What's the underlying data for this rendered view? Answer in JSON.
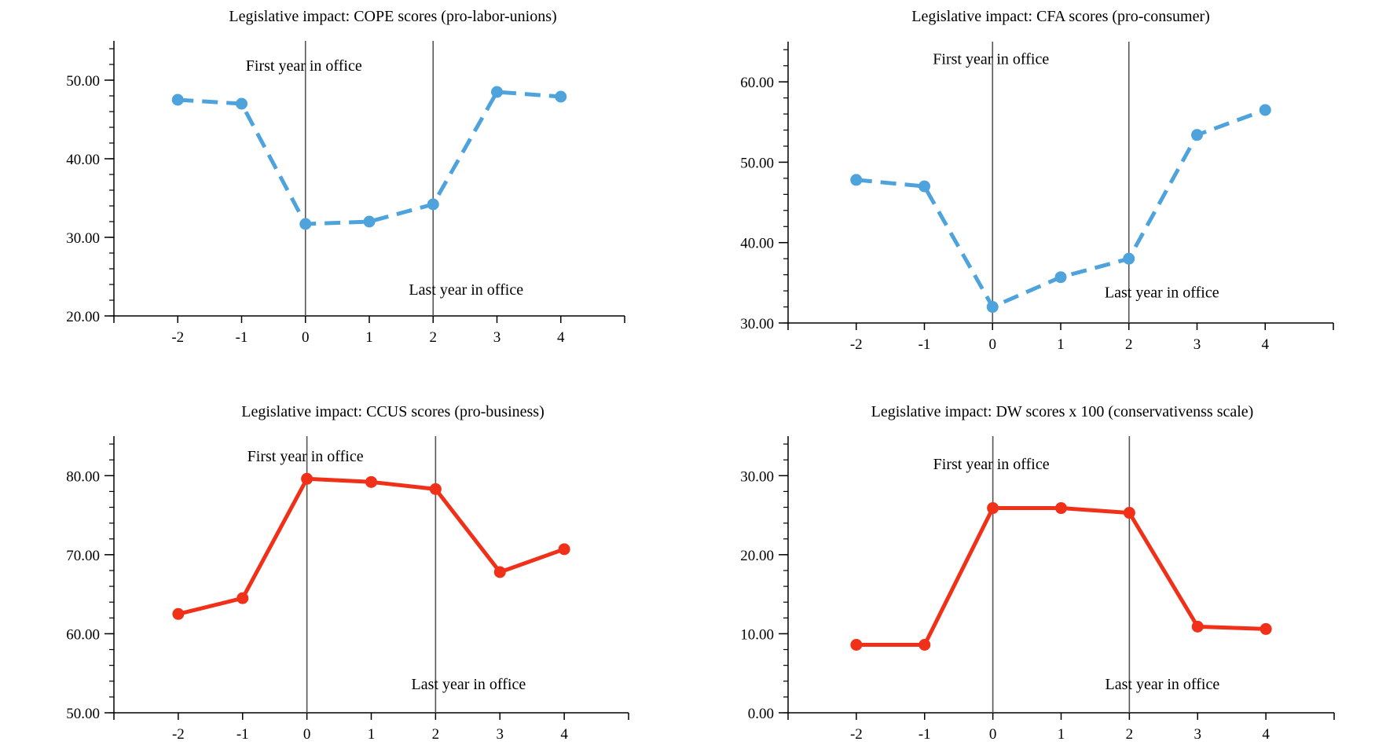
{
  "colors": {
    "blue": "#4ea3dc",
    "red": "#f03018",
    "axis": "#000000",
    "marker_line": "#555555"
  },
  "chart_data": [
    {
      "type": "line",
      "title": "Legislative impact: COPE scores (pro-labor-unions)",
      "x": [
        -2,
        -1,
        0,
        1,
        2,
        3,
        4
      ],
      "x_tick_labels": [
        "-2",
        "-1",
        "0",
        "1",
        "2",
        "3",
        "4"
      ],
      "y_ticks": [
        20,
        30,
        40,
        50
      ],
      "y_tick_labels": [
        "20.00",
        "30.00",
        "40.00",
        "50.00"
      ],
      "ylim": [
        20,
        55
      ],
      "xlim": [
        -3,
        5
      ],
      "series": [
        {
          "name": "COPE",
          "values": [
            47.5,
            47.0,
            31.7,
            32.0,
            34.2,
            48.5,
            47.9
          ],
          "style": "dashed",
          "color": "#4ea3dc"
        }
      ],
      "vlines": [
        0,
        2
      ],
      "annotations": {
        "first_year": "First year in office",
        "last_year": "Last year in office"
      },
      "first_year_y": 51.2,
      "last_year_y": 22.7
    },
    {
      "type": "line",
      "title": "Legislative impact: CFA scores (pro-consumer)",
      "x": [
        -2,
        -1,
        0,
        1,
        2,
        3,
        4
      ],
      "x_tick_labels": [
        "-2",
        "-1",
        "0",
        "1",
        "2",
        "3",
        "4"
      ],
      "y_ticks": [
        30,
        40,
        50,
        60
      ],
      "y_tick_labels": [
        "30.00",
        "40.00",
        "50.00",
        "60.00"
      ],
      "ylim": [
        30,
        65
      ],
      "xlim": [
        -3,
        5
      ],
      "series": [
        {
          "name": "CFA",
          "values": [
            47.8,
            47.0,
            32.0,
            35.7,
            38.0,
            53.4,
            56.5
          ],
          "style": "dashed",
          "color": "#4ea3dc"
        }
      ],
      "vlines": [
        0,
        2
      ],
      "annotations": {
        "first_year": "First year in office",
        "last_year": "Last year in office"
      },
      "first_year_y": 62.2,
      "last_year_y": 33.2
    },
    {
      "type": "line",
      "title": "Legislative impact: CCUS scores (pro-business)",
      "x": [
        -2,
        -1,
        0,
        1,
        2,
        3,
        4
      ],
      "x_tick_labels": [
        "-2",
        "-1",
        "0",
        "1",
        "2",
        "3",
        "4"
      ],
      "y_ticks": [
        50,
        60,
        70,
        80
      ],
      "y_tick_labels": [
        "50.00",
        "60.00",
        "70.00",
        "80.00"
      ],
      "ylim": [
        50,
        85
      ],
      "xlim": [
        -3,
        5
      ],
      "series": [
        {
          "name": "CCUS",
          "values": [
            62.5,
            64.5,
            79.6,
            79.2,
            78.3,
            67.8,
            70.7
          ],
          "style": "solid",
          "color": "#f03018"
        }
      ],
      "vlines": [
        0,
        2
      ],
      "annotations": {
        "first_year": "First year in office",
        "last_year": "Last year in office"
      },
      "first_year_y": 81.8,
      "last_year_y": 53.0
    },
    {
      "type": "line",
      "title": "Legislative impact: DW scores x 100 (conservativenss scale)",
      "x": [
        -2,
        -1,
        0,
        1,
        2,
        3,
        4
      ],
      "x_tick_labels": [
        "-2",
        "-1",
        "0",
        "1",
        "2",
        "3",
        "4"
      ],
      "y_ticks": [
        0,
        10,
        20,
        30
      ],
      "y_tick_labels": [
        "0.00",
        "10.00",
        "20.00",
        "30.00"
      ],
      "ylim": [
        0,
        35
      ],
      "xlim": [
        -3,
        5
      ],
      "series": [
        {
          "name": "DW x 100",
          "values": [
            8.6,
            8.6,
            25.9,
            25.9,
            25.3,
            10.9,
            10.6
          ],
          "style": "solid",
          "color": "#f03018"
        }
      ],
      "vlines": [
        0,
        2
      ],
      "annotations": {
        "first_year": "First year in office",
        "last_year": "Last year in office"
      },
      "first_year_y": 30.8,
      "last_year_y": 3.0
    }
  ]
}
